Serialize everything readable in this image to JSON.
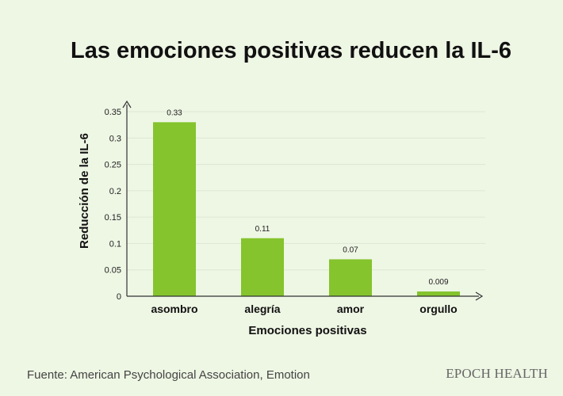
{
  "chart_data": {
    "type": "bar",
    "title": "Las emociones positivas reducen la IL-6",
    "xlabel": "Emociones positivas",
    "ylabel": "Reducción de la IL-6",
    "categories": [
      "asombro",
      "alegría",
      "amor",
      "orgullo"
    ],
    "values": [
      0.33,
      0.11,
      0.07,
      0.009
    ],
    "value_labels": [
      "0.33",
      "0.11",
      "0.07",
      "0.009"
    ],
    "ylim": [
      0,
      0.35
    ],
    "yticks": [
      "0",
      "0.05",
      "0.1",
      "0.15",
      "0.2",
      "0.25",
      "0.3",
      "0.35"
    ],
    "grid": true,
    "legend": "none",
    "bar_color": "#85c42d"
  },
  "footer": {
    "source": "Fuente: American Psychological Association, Emotion",
    "brand": "EPOCH HEALTH"
  },
  "colors": {
    "background": "#eef6e4",
    "grid": "#dde6d4",
    "axis": "#333333"
  }
}
